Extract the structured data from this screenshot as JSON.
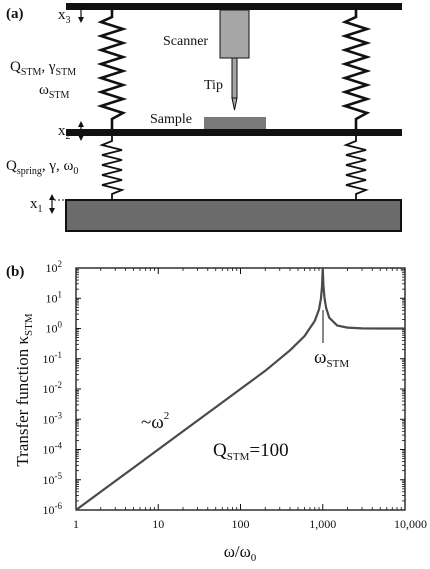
{
  "panel_a": {
    "label": "(a)",
    "scanner": "Scanner",
    "tip": "Tip",
    "sample": "Sample",
    "x3": {
      "base": "x",
      "sub": "3"
    },
    "x2": {
      "base": "x",
      "sub": "2"
    },
    "x1": {
      "base": "x",
      "sub": "1"
    },
    "upper_spring_params_line1": [
      {
        "t": "Q",
        "sub": false
      },
      {
        "t": "STM",
        "sub": true
      },
      {
        "t": ", γ",
        "sub": false
      },
      {
        "t": "STM",
        "sub": true
      }
    ],
    "upper_spring_params_line2": [
      {
        "t": "ω",
        "sub": false
      },
      {
        "t": "STM",
        "sub": true
      }
    ],
    "lower_spring_params": [
      {
        "t": "Q",
        "sub": false
      },
      {
        "t": "spring",
        "sub": true
      },
      {
        "t": ", γ, ω",
        "sub": false
      },
      {
        "t": "0",
        "sub": true
      }
    ]
  },
  "panel_b": {
    "label": "(b)",
    "annotation_peak": {
      "base": "ω",
      "sub": "STM"
    },
    "annotation_slope": {
      "base": "~ω",
      "sup": "2"
    },
    "annotation_q": {
      "base": "Q",
      "sub": "STM",
      "rest": "=100"
    }
  },
  "chart_data": {
    "type": "line",
    "title": "",
    "xlabel": {
      "base": "ω/ω",
      "sub": "0"
    },
    "ylabel": {
      "base": "Transfer function κ",
      "sub": "STM"
    },
    "x_scale": "log",
    "y_scale": "log",
    "xlim": [
      1,
      10000
    ],
    "ylim": [
      1e-06,
      100
    ],
    "x_ticks": [
      {
        "value": 1,
        "label": "1"
      },
      {
        "value": 10,
        "label": "10"
      },
      {
        "value": 100,
        "label": "100"
      },
      {
        "value": 1000,
        "label": "1,000"
      },
      {
        "value": 10000,
        "label": "10,000"
      }
    ],
    "y_ticks": [
      {
        "value": 1e-06,
        "exp": "-6"
      },
      {
        "value": 1e-05,
        "exp": "-5"
      },
      {
        "value": 0.0001,
        "exp": "-4"
      },
      {
        "value": 0.001,
        "exp": "-3"
      },
      {
        "value": 0.01,
        "exp": "-2"
      },
      {
        "value": 0.1,
        "exp": "-1"
      },
      {
        "value": 1,
        "exp": "0"
      },
      {
        "value": 10,
        "exp": "1"
      },
      {
        "value": 100,
        "exp": "2"
      }
    ],
    "y_tick_base": "10",
    "grid": false,
    "series": [
      {
        "color": "#4a4a4a",
        "x": [
          1,
          2,
          5,
          10,
          20,
          50,
          100,
          200,
          400,
          600,
          800,
          900,
          950,
          980,
          1000,
          1020,
          1050,
          1100,
          1200,
          1500,
          2000,
          3000,
          5000,
          7000,
          10000
        ],
        "y": [
          1e-06,
          4e-06,
          2.5e-05,
          0.0001,
          0.0004,
          0.0025,
          0.01,
          0.04,
          0.19,
          0.56,
          1.78,
          4.26,
          9.75,
          24.7,
          100,
          25.3,
          10.3,
          4.76,
          2.27,
          1.25,
          1.07,
          1.01,
          1.0,
          1.0,
          1.0
        ]
      }
    ]
  }
}
